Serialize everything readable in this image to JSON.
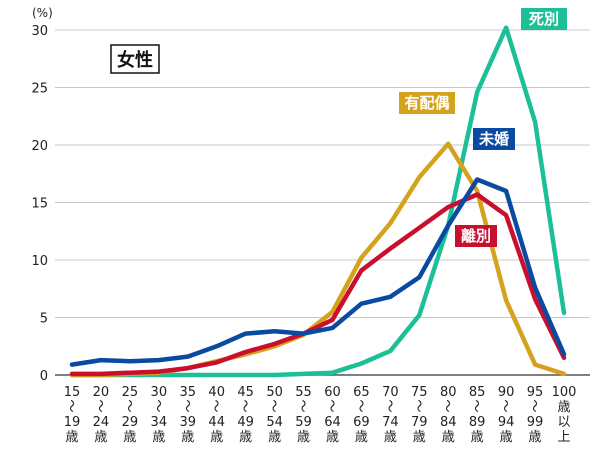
{
  "chart_data": {
    "type": "line",
    "title": "女性",
    "ylabel": "(%)",
    "xlabel": "",
    "ylim": [
      0,
      30
    ],
    "yticks": [
      0,
      5,
      10,
      15,
      20,
      25,
      30
    ],
    "grid": "horizontal",
    "categories": [
      [
        "15",
        "〜",
        "19",
        "歳"
      ],
      [
        "20",
        "〜",
        "24",
        "歳"
      ],
      [
        "25",
        "〜",
        "29",
        "歳"
      ],
      [
        "30",
        "〜",
        "34",
        "歳"
      ],
      [
        "35",
        "〜",
        "39",
        "歳"
      ],
      [
        "40",
        "〜",
        "44",
        "歳"
      ],
      [
        "45",
        "〜",
        "49",
        "歳"
      ],
      [
        "50",
        "〜",
        "54",
        "歳"
      ],
      [
        "55",
        "〜",
        "59",
        "歳"
      ],
      [
        "60",
        "〜",
        "64",
        "歳"
      ],
      [
        "65",
        "〜",
        "69",
        "歳"
      ],
      [
        "70",
        "〜",
        "74",
        "歳"
      ],
      [
        "75",
        "〜",
        "79",
        "歳"
      ],
      [
        "80",
        "〜",
        "84",
        "歳"
      ],
      [
        "85",
        "〜",
        "89",
        "歳"
      ],
      [
        "90",
        "〜",
        "94",
        "歳"
      ],
      [
        "95",
        "〜",
        "99",
        "歳"
      ],
      [
        "100",
        "歳",
        "以",
        "上"
      ]
    ],
    "series": [
      {
        "name": "死別",
        "color": "#1bbf98",
        "values": [
          0,
          0,
          0,
          0,
          0,
          0,
          0,
          0,
          0.1,
          0.2,
          1.0,
          2.1,
          5.2,
          13.0,
          24.6,
          30.2,
          22.0,
          5.4
        ]
      },
      {
        "name": "有配偶",
        "color": "#d4a21c",
        "values": [
          0,
          0,
          0.1,
          0.2,
          0.6,
          1.2,
          1.8,
          2.5,
          3.5,
          5.5,
          10.2,
          13.2,
          17.2,
          20.1,
          16.0,
          6.5,
          0.9,
          0.1
        ]
      },
      {
        "name": "離別",
        "color": "#c8102e",
        "values": [
          0.1,
          0.1,
          0.2,
          0.3,
          0.6,
          1.1,
          2.0,
          2.7,
          3.6,
          4.8,
          9.1,
          11.0,
          12.8,
          14.6,
          15.7,
          13.9,
          6.6,
          1.5
        ]
      },
      {
        "name": "未婚",
        "color": "#0a4aa0",
        "values": [
          0.9,
          1.3,
          1.2,
          1.3,
          1.6,
          2.5,
          3.6,
          3.8,
          3.6,
          4.1,
          6.2,
          6.8,
          8.5,
          13.0,
          17.0,
          16.0,
          7.6,
          1.8
        ]
      }
    ]
  }
}
